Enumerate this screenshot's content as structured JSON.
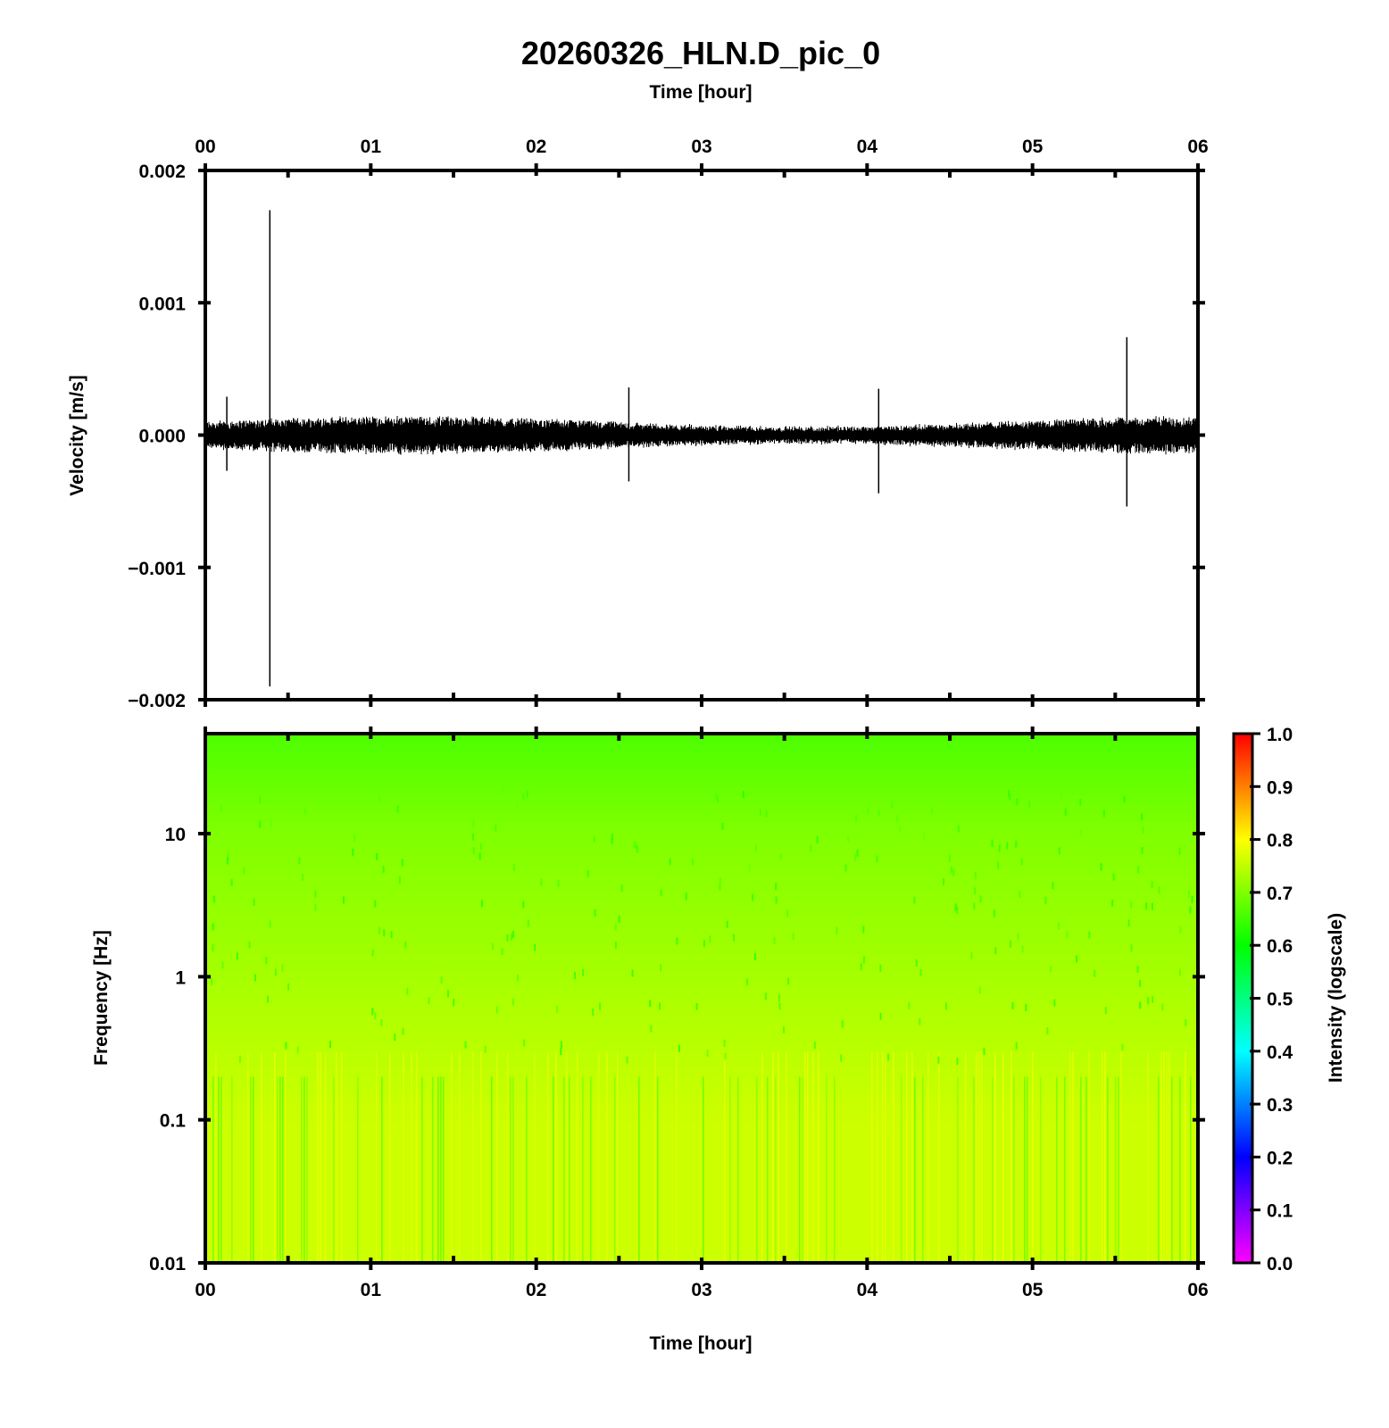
{
  "title": "20260326_HLN.D_pic_0",
  "top_xlabel": "Time [hour]",
  "bottom_xlabel": "Time [hour]",
  "time_ticks": [
    "00",
    "01",
    "02",
    "03",
    "04",
    "05",
    "06"
  ],
  "colors": {
    "trace": "#000000",
    "frame": "#000000",
    "background": "#ffffff"
  },
  "chart_data": [
    {
      "type": "line",
      "name": "waveform",
      "xlabel": "Time [hour]",
      "ylabel": "Velocity [m/s]",
      "xlim": [
        0,
        6
      ],
      "ylim": [
        -0.002,
        0.002
      ],
      "yticks": [
        0.002,
        0.001,
        0.0,
        -0.001,
        -0.002
      ],
      "ytick_labels": [
        "0.002",
        "0.001",
        "0.000",
        "−0.001",
        "−0.002"
      ],
      "noise_amplitude": 8e-05,
      "spikes": [
        {
          "t": 0.13,
          "max": 0.00029,
          "min": -0.00027
        },
        {
          "t": 0.39,
          "max": 0.0017,
          "min": -0.0019
        },
        {
          "t": 2.56,
          "max": 0.00036,
          "min": -0.00035
        },
        {
          "t": 4.07,
          "max": 0.00035,
          "min": -0.00044
        },
        {
          "t": 5.57,
          "max": 0.00074,
          "min": -0.00054
        }
      ]
    },
    {
      "type": "heatmap",
      "name": "spectrogram",
      "xlabel": "Time [hour]",
      "ylabel": "Frequency [Hz]",
      "xlim": [
        0,
        6
      ],
      "ylim": [
        0.01,
        50
      ],
      "yscale": "log",
      "yticks": [
        10,
        1,
        0.1,
        0.01
      ],
      "ytick_labels": [
        "10",
        "1",
        "0.1",
        "0.01"
      ],
      "intensity_profile": [
        {
          "freq": 50,
          "intensity": 0.66
        },
        {
          "freq": 10,
          "intensity": 0.7
        },
        {
          "freq": 1,
          "intensity": 0.73
        },
        {
          "freq": 0.1,
          "intensity": 0.76
        },
        {
          "freq": 0.01,
          "intensity": 0.76
        }
      ],
      "colorbar": {
        "label": "Intensity (logscale)",
        "range": [
          0.0,
          1.0
        ],
        "ticks": [
          "0.0",
          "0.1",
          "0.2",
          "0.3",
          "0.4",
          "0.5",
          "0.6",
          "0.7",
          "0.8",
          "0.9",
          "1.0"
        ],
        "colormap": [
          "#ff00ff",
          "#0000ff",
          "#00ffff",
          "#00ff00",
          "#ffff00",
          "#ff0000"
        ]
      }
    }
  ]
}
